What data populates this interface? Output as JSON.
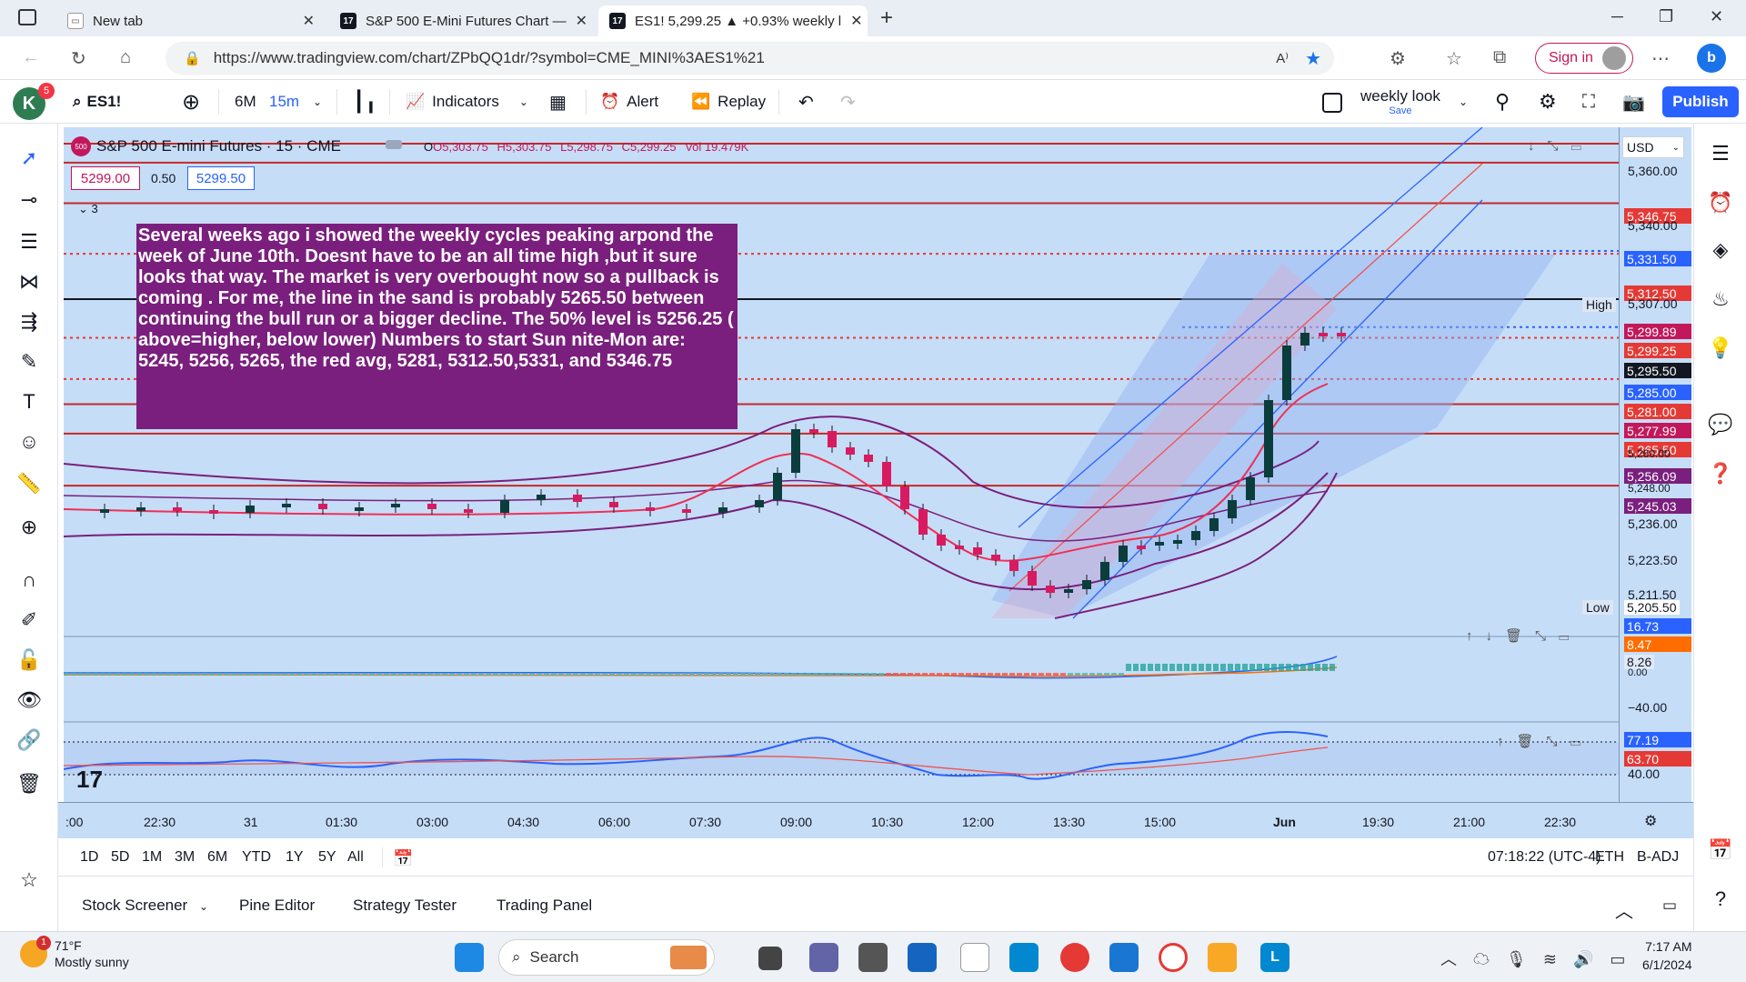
{
  "browser": {
    "tabs": [
      {
        "label": "New tab",
        "icon": "new-tab-icon"
      },
      {
        "label": "S&P 500 E-Mini Futures Chart —",
        "icon": "tradingview-icon"
      },
      {
        "label": "ES1! 5,299.25 ▲ +0.93% weekly l",
        "icon": "tradingview-icon"
      }
    ],
    "url": "https://www.tradingview.com/chart/ZPbQQ1dr/?symbol=CME_MINI%3AES1%21",
    "sign_in": "Sign in"
  },
  "toolbar": {
    "avatar_letter": "K",
    "avatar_badge": "5",
    "symbol": "ES1!",
    "range": "6M",
    "interval": "15m",
    "indicators": "Indicators",
    "alert": "Alert",
    "replay": "Replay",
    "layout_name": "weekly look",
    "layout_save": "Save",
    "publish": "Publish"
  },
  "chart": {
    "title": "S&P 500 E-mini Futures · 15 · CME",
    "logo_text": "500",
    "ohlc": {
      "o": "O5,303.75",
      "h": "H5,303.75",
      "l": "L5,298.75",
      "c": "C5,299.25",
      "vol": "Vol 19.479K"
    },
    "bid": "5299.00",
    "spread": "0.50",
    "ask": "5299.50",
    "collapsed_count": "3",
    "currency": "USD",
    "note": "Several weeks ago i showed the weekly cycles peaking arpond the week of June 10th. Doesnt have to be an all time high ,but it sure looks that way. The market is very overbought now so a pullback is coming . For me, the line in the sand is probably 5265.50 between continuing the bull run or a bigger decline. The 50% level is 5256.25 ( above=higher, below lower) Numbers to start Sun nite-Mon  are: 5245, 5256, 5265, the red avg, 5281, 5312.50,5331, and  5346.75",
    "high_label": "High",
    "low_label": "Low",
    "price_ticks": [
      "5,360.00",
      "5,340.00",
      "5,307.00",
      "5,236.00",
      "5,223.50",
      "5,211.50",
      "5,205.50",
      "5,260.00",
      "5,248.00"
    ],
    "price_labels": [
      {
        "value": "5,346.75",
        "color": "#e53935"
      },
      {
        "value": "5,331.50",
        "color": "#2962ff"
      },
      {
        "value": "5,312.50",
        "color": "#e53935"
      },
      {
        "value": "5,299.89",
        "color": "#c2185b"
      },
      {
        "value": "5,299.25",
        "color": "#e53935"
      },
      {
        "value": "5,295.50",
        "color": "#131722"
      },
      {
        "value": "5,285.00",
        "color": "#2962ff"
      },
      {
        "value": "5,281.00",
        "color": "#e53935"
      },
      {
        "value": "5,277.99",
        "color": "#c2185b"
      },
      {
        "value": "5,265.50",
        "color": "#e53935"
      },
      {
        "value": "5,256.09",
        "color": "#7a1f7d"
      },
      {
        "value": "5,245.03",
        "color": "#7a1f7d"
      }
    ],
    "osc1_labels": [
      {
        "value": "16.73",
        "color": "#2962ff"
      },
      {
        "value": "8.47",
        "color": "#ff6d00"
      }
    ],
    "osc1_ticks": [
      "8.26",
      "0.00",
      "−40.00"
    ],
    "osc2_labels": [
      {
        "value": "77.19",
        "color": "#2962ff"
      },
      {
        "value": "63.70",
        "color": "#e53935"
      }
    ],
    "osc2_ticks": [
      "40.00"
    ],
    "time_ticks": [
      ":00",
      "22:30",
      "31",
      "01:30",
      "03:00",
      "04:30",
      "06:00",
      "07:30",
      "09:00",
      "10:30",
      "12:00",
      "13:30",
      "15:00",
      "Jun",
      "19:30",
      "21:00",
      "22:30"
    ],
    "colors": {
      "background": "#c6ddf7",
      "up": "#0b3d3d",
      "down": "#d81b60",
      "level": "#c62828"
    }
  },
  "range_bar": {
    "ranges": [
      "1D",
      "5D",
      "1M",
      "3M",
      "6M",
      "YTD",
      "1Y",
      "5Y",
      "All"
    ],
    "clock": "07:18:22 (UTC-4)",
    "session": "ETH",
    "adjust": "B-ADJ"
  },
  "bottom_tabs": [
    "Stock Screener",
    "Pine Editor",
    "Strategy Tester",
    "Trading Panel"
  ],
  "taskbar": {
    "weather_temp": "71°F",
    "weather_desc": "Mostly sunny",
    "weather_badge": "1",
    "search": "Search",
    "time": "7:17 AM",
    "date": "6/1/2024"
  }
}
